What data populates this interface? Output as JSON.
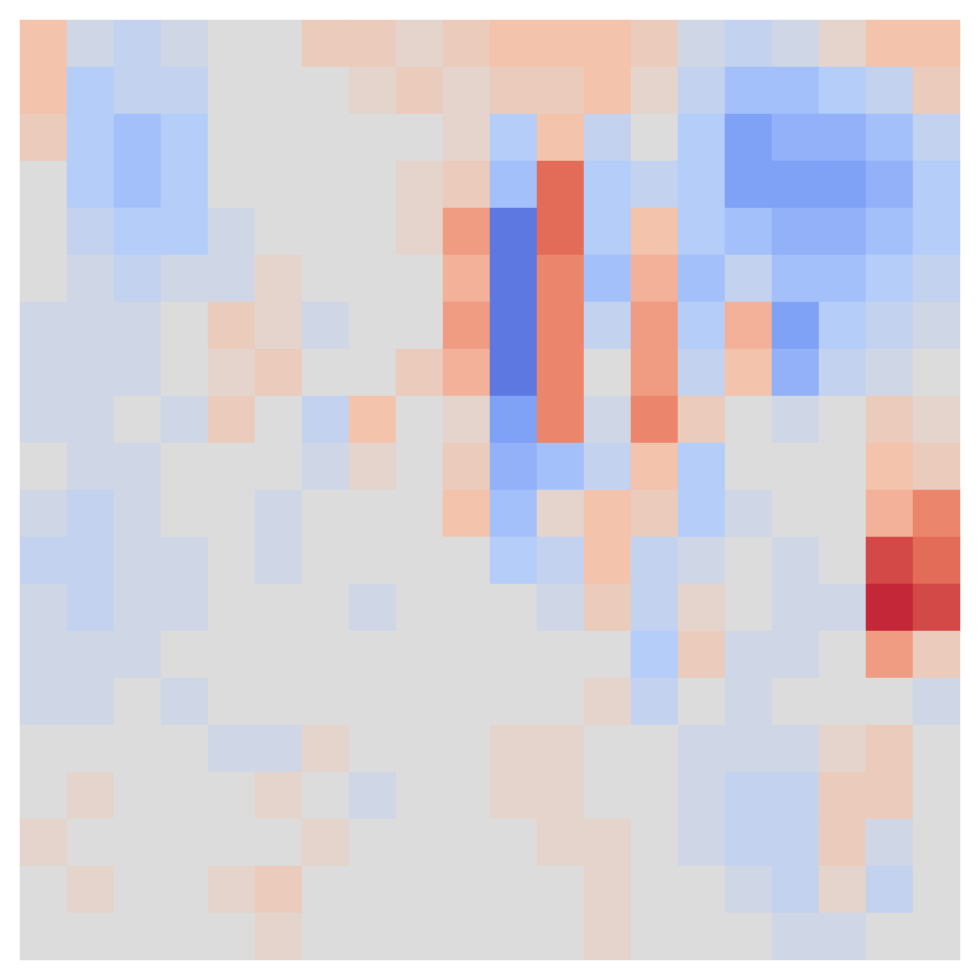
{
  "chart_data": {
    "type": "heatmap",
    "tick_labels": false,
    "grid": false,
    "color_range": [
      -1,
      1
    ],
    "cells": [
      [
        0.3,
        -0.1,
        -0.2,
        -0.1,
        0,
        0,
        0.2,
        0.2,
        0.1,
        0.2,
        0.3,
        0.3,
        0.3,
        0.2,
        -0.1,
        -0.2,
        -0.1,
        0.1,
        0.3,
        0.3
      ],
      [
        0.3,
        -0.3,
        -0.2,
        -0.2,
        0,
        0,
        0,
        0.1,
        0.2,
        0.1,
        0.2,
        0.2,
        0.3,
        0.1,
        -0.2,
        -0.4,
        -0.4,
        -0.3,
        -0.2,
        0.2
      ],
      [
        0.2,
        -0.3,
        -0.4,
        -0.3,
        0,
        0,
        0,
        0,
        0,
        0.1,
        -0.3,
        0.3,
        -0.2,
        0,
        -0.3,
        -0.6,
        -0.5,
        -0.5,
        -0.4,
        -0.2
      ],
      [
        0,
        -0.3,
        -0.4,
        -0.3,
        0,
        0,
        0,
        0,
        0.1,
        0.2,
        -0.4,
        0.7,
        -0.3,
        -0.2,
        -0.3,
        -0.6,
        -0.6,
        -0.6,
        -0.5,
        -0.3
      ],
      [
        0,
        -0.2,
        -0.3,
        -0.3,
        -0.1,
        0,
        0,
        0,
        0.1,
        0.5,
        -0.8,
        0.7,
        -0.3,
        0.3,
        -0.3,
        -0.4,
        -0.5,
        -0.5,
        -0.4,
        -0.3
      ],
      [
        0,
        -0.1,
        -0.2,
        -0.1,
        -0.1,
        0.1,
        0,
        0,
        0,
        0.4,
        -0.8,
        0.6,
        -0.4,
        0.4,
        -0.4,
        -0.2,
        -0.4,
        -0.4,
        -0.3,
        -0.2
      ],
      [
        -0.1,
        -0.1,
        -0.1,
        0,
        0.2,
        0.1,
        -0.1,
        0,
        0,
        0.5,
        -0.8,
        0.6,
        -0.2,
        0.5,
        -0.3,
        0.4,
        -0.6,
        -0.3,
        -0.2,
        -0.1
      ],
      [
        -0.1,
        -0.1,
        -0.1,
        0,
        0.1,
        0.2,
        0,
        0,
        0.2,
        0.4,
        -0.8,
        0.6,
        0,
        0.5,
        -0.2,
        0.3,
        -0.5,
        -0.2,
        -0.1,
        0
      ],
      [
        -0.1,
        -0.1,
        0,
        -0.1,
        0.2,
        0,
        -0.2,
        0.3,
        0,
        0.1,
        -0.6,
        0.6,
        -0.1,
        0.6,
        0.2,
        0,
        -0.1,
        0,
        0.2,
        0.1
      ],
      [
        0,
        -0.1,
        -0.1,
        0,
        0,
        0,
        -0.1,
        0.1,
        0,
        0.2,
        -0.5,
        -0.4,
        -0.2,
        0.3,
        -0.3,
        0,
        0,
        0,
        0.3,
        0.2
      ],
      [
        -0.1,
        -0.2,
        -0.1,
        0,
        0,
        -0.1,
        0,
        0,
        0,
        0.3,
        -0.4,
        0.1,
        0.3,
        0.2,
        -0.3,
        -0.1,
        0,
        0,
        0.4,
        0.6
      ],
      [
        -0.2,
        -0.2,
        -0.1,
        -0.1,
        0,
        -0.1,
        0,
        0,
        0,
        0,
        -0.3,
        -0.2,
        0.3,
        -0.2,
        -0.1,
        0,
        -0.1,
        0,
        0.8,
        0.7
      ],
      [
        -0.1,
        -0.2,
        -0.1,
        -0.1,
        0,
        0,
        0,
        -0.1,
        0,
        0,
        0,
        -0.1,
        0.2,
        -0.2,
        0.1,
        0,
        -0.1,
        -0.1,
        0.9,
        0.8
      ],
      [
        -0.1,
        -0.1,
        -0.1,
        0,
        0,
        0,
        0,
        0,
        0,
        0,
        0,
        0,
        0,
        -0.3,
        0.2,
        -0.1,
        -0.1,
        0,
        0.5,
        0.2
      ],
      [
        -0.1,
        -0.1,
        0,
        -0.1,
        0,
        0,
        0,
        0,
        0,
        0,
        0,
        0,
        0.1,
        -0.2,
        0,
        -0.1,
        0,
        0,
        0,
        -0.1
      ],
      [
        0,
        0,
        0,
        0,
        -0.1,
        -0.1,
        0.1,
        0,
        0,
        0,
        0.1,
        0.1,
        0,
        0,
        -0.1,
        -0.1,
        -0.1,
        0.1,
        0.2,
        0
      ],
      [
        0,
        0.1,
        0,
        0,
        0,
        0.1,
        0,
        -0.1,
        0,
        0,
        0.1,
        0.1,
        0,
        0,
        -0.1,
        -0.2,
        -0.2,
        0.2,
        0.2,
        0
      ],
      [
        0.1,
        0,
        0,
        0,
        0,
        0,
        0.1,
        0,
        0,
        0,
        0,
        0.1,
        0.1,
        0,
        -0.1,
        -0.2,
        -0.2,
        0.2,
        -0.1,
        0
      ],
      [
        0,
        0.1,
        0,
        0,
        0.1,
        0.2,
        0,
        0,
        0,
        0,
        0,
        0,
        0.1,
        0,
        0,
        -0.1,
        -0.2,
        0.1,
        -0.2,
        0
      ],
      [
        0,
        0,
        0,
        0,
        0,
        0.1,
        0,
        0,
        0,
        0,
        0,
        0,
        0.1,
        0,
        0,
        0,
        -0.1,
        -0.1,
        0,
        0
      ]
    ]
  }
}
